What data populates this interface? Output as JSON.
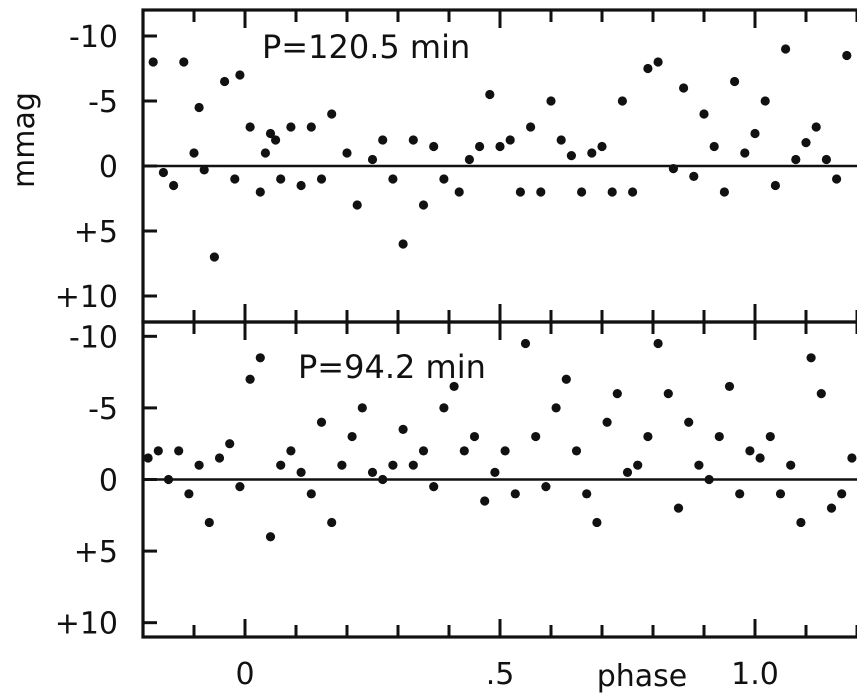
{
  "chart_data": [
    {
      "type": "scatter",
      "panel_label": "P=120.5 min",
      "ylabel": "mmag",
      "xlabel": "phase",
      "xlim": [
        -0.2,
        1.2
      ],
      "ylim": [
        12,
        -12
      ],
      "y_inverted": true,
      "reference_line_y": 0,
      "x_ticks": [
        0,
        0.5,
        1.0
      ],
      "x_tick_labels": [
        "0",
        ".5",
        "1.0"
      ],
      "y_ticks": [
        -10,
        -5,
        0,
        5,
        10
      ],
      "y_tick_labels": [
        "-10",
        "-5",
        "0",
        "+5",
        "+10"
      ],
      "series": [
        {
          "x": [
            -0.18,
            -0.16,
            -0.14,
            -0.12,
            -0.1,
            -0.09,
            -0.08,
            -0.06,
            -0.04,
            -0.02,
            -0.01,
            0.01,
            0.03,
            0.04,
            0.05,
            0.06,
            0.07,
            0.09,
            0.11,
            0.13,
            0.15,
            0.17,
            0.2,
            0.22,
            0.25,
            0.27,
            0.29,
            0.31,
            0.33,
            0.35,
            0.37,
            0.39,
            0.42,
            0.44,
            0.46,
            0.48,
            0.5,
            0.52,
            0.54,
            0.56,
            0.58,
            0.6,
            0.62,
            0.64,
            0.66,
            0.68,
            0.7,
            0.72,
            0.74,
            0.76,
            0.79,
            0.81,
            0.84,
            0.86,
            0.88,
            0.9,
            0.92,
            0.94,
            0.96,
            0.98,
            1.0,
            1.02,
            1.04,
            1.06,
            1.08,
            1.1,
            1.12,
            1.14,
            1.16,
            1.18
          ],
          "y": [
            -8,
            0.5,
            1.5,
            -8,
            -1,
            -4.5,
            0.3,
            7,
            -6.5,
            1,
            -7,
            -3,
            2,
            -1,
            -2.5,
            -2,
            1,
            -3,
            1.5,
            -3,
            1,
            -4,
            -1,
            3,
            -0.5,
            -2,
            1,
            6,
            -2,
            3,
            -1.5,
            1,
            2,
            -0.5,
            -1.5,
            -5.5,
            -1.5,
            -2,
            2,
            -3,
            2,
            -5,
            -2,
            -0.8,
            2,
            -1,
            -1.5,
            2,
            -5,
            2,
            -7.5,
            -8,
            0.2,
            -6,
            0.8,
            -4,
            -1.5,
            2,
            -6.5,
            -1,
            -2.5,
            -5,
            1.5,
            -9,
            -0.5,
            -1.8,
            -3,
            -0.5,
            1,
            -8.5
          ]
        }
      ]
    },
    {
      "type": "scatter",
      "panel_label": "P=94.2 min",
      "ylabel": "",
      "xlabel": "phase",
      "xlim": [
        -0.2,
        1.2
      ],
      "ylim": [
        11,
        -11
      ],
      "y_inverted": true,
      "reference_line_y": 0,
      "x_ticks": [
        0,
        0.5,
        1.0
      ],
      "x_tick_labels": [
        "0",
        ".5",
        "1.0"
      ],
      "y_ticks": [
        -10,
        -5,
        0,
        5,
        10
      ],
      "y_tick_labels": [
        "-10",
        "-5",
        "0",
        "+5",
        "+10"
      ],
      "series": [
        {
          "x": [
            -0.19,
            -0.17,
            -0.15,
            -0.13,
            -0.11,
            -0.09,
            -0.07,
            -0.05,
            -0.03,
            -0.01,
            0.01,
            0.03,
            0.05,
            0.07,
            0.09,
            0.11,
            0.13,
            0.15,
            0.17,
            0.19,
            0.21,
            0.23,
            0.25,
            0.27,
            0.29,
            0.31,
            0.33,
            0.35,
            0.37,
            0.39,
            0.41,
            0.43,
            0.45,
            0.47,
            0.49,
            0.51,
            0.53,
            0.55,
            0.57,
            0.59,
            0.61,
            0.63,
            0.65,
            0.67,
            0.69,
            0.71,
            0.73,
            0.75,
            0.77,
            0.79,
            0.81,
            0.83,
            0.85,
            0.87,
            0.89,
            0.91,
            0.93,
            0.95,
            0.97,
            0.99,
            1.01,
            1.03,
            1.05,
            1.07,
            1.09,
            1.11,
            1.13,
            1.15,
            1.17,
            1.19
          ],
          "y": [
            -1.5,
            -2,
            0,
            -2,
            1,
            -1,
            3,
            -1.5,
            -2.5,
            0.5,
            -7,
            -8.5,
            4,
            -1,
            -2,
            -0.5,
            1,
            -4,
            3,
            -1,
            -3,
            -5,
            -0.5,
            0,
            -1,
            -3.5,
            -1,
            -2,
            0.5,
            -5,
            -6.5,
            -2,
            -3,
            1.5,
            -0.5,
            -2,
            1,
            -9.5,
            -3,
            0.5,
            -5,
            -7,
            -2,
            1,
            3,
            -4,
            -6,
            -0.5,
            -1,
            -3,
            -9.5,
            -6,
            2,
            -4,
            -1,
            0,
            -3,
            -6.5,
            1,
            -2,
            -1.5,
            -3,
            1,
            -1,
            3,
            -8.5,
            -6,
            2,
            1,
            -1.5
          ]
        }
      ]
    }
  ]
}
